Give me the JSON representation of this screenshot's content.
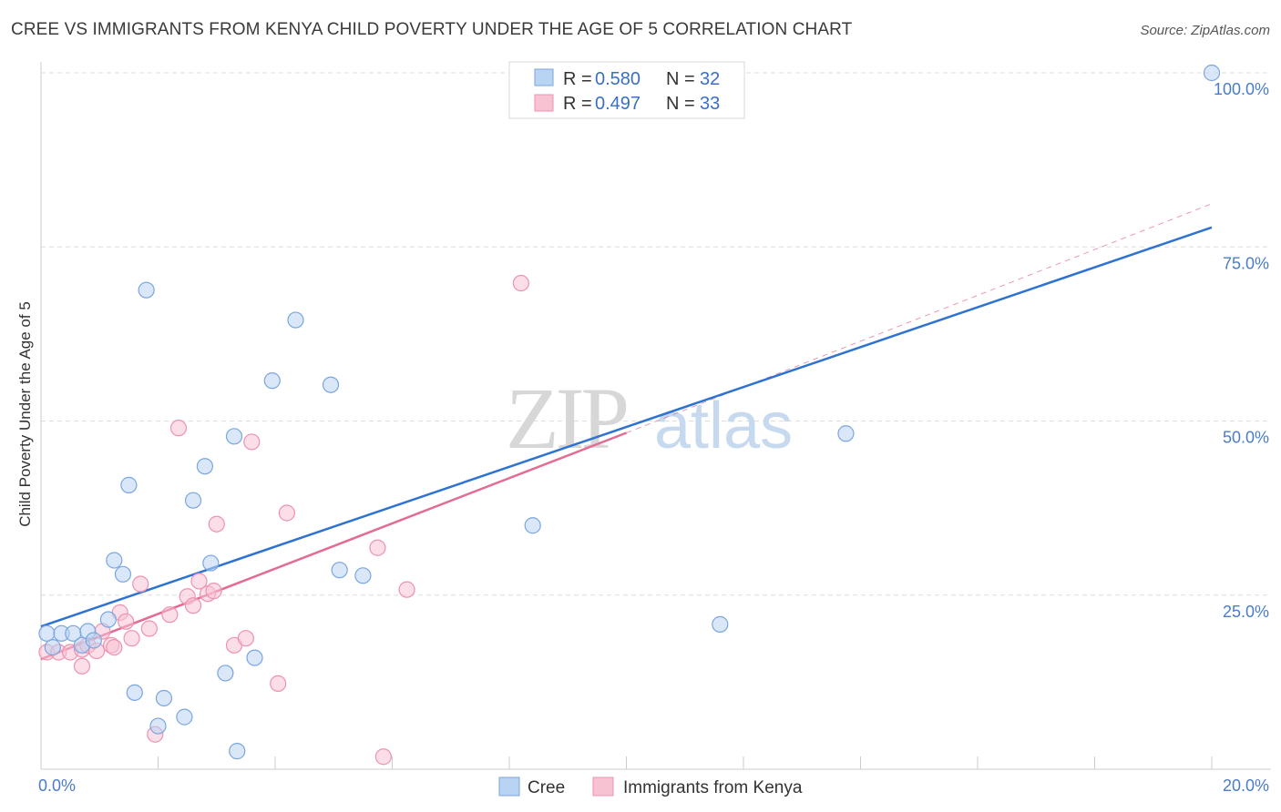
{
  "title": "CREE VS IMMIGRANTS FROM KENYA CHILD POVERTY UNDER THE AGE OF 5 CORRELATION CHART",
  "source": "Source: ZipAtlas.com",
  "watermark": {
    "zip": "ZIP",
    "atlas": "atlas"
  },
  "colors": {
    "blue_fill": "#b9d4f3",
    "blue_stroke": "#7aa6de",
    "blue_line": "#2f73d1",
    "pink_fill": "#f7c3d3",
    "pink_stroke": "#ee92b0",
    "pink_line": "#e26c95",
    "grid": "#dddddd",
    "tick": "#4a7cc9"
  },
  "legend": {
    "rows": [
      {
        "r_label": "R =",
        "r_value": "0.580",
        "n_label": "N =",
        "n_value": "32"
      },
      {
        "r_label": "R =",
        "r_value": "0.497",
        "n_label": "N =",
        "n_value": "33"
      }
    ]
  },
  "bottom_legend": [
    "Cree",
    "Immigrants from Kenya"
  ],
  "chart_data": {
    "type": "scatter",
    "title": "CREE VS IMMIGRANTS FROM KENYA CHILD POVERTY UNDER THE AGE OF 5 CORRELATION CHART",
    "xlabel": "",
    "ylabel": "Child Poverty Under the Age of 5",
    "xlim": [
      0,
      20
    ],
    "ylim": [
      0,
      100
    ],
    "x_tick_labels": [
      "0.0%",
      "20.0%"
    ],
    "y_ticks": [
      25,
      50,
      75,
      100
    ],
    "y_tick_labels": [
      "25.0%",
      "50.0%",
      "75.0%",
      "100.0%"
    ],
    "grid": true,
    "series": [
      {
        "name": "Cree",
        "color": "#7aa6de",
        "points": [
          [
            0.1,
            19.5
          ],
          [
            0.2,
            17.5
          ],
          [
            0.35,
            19.5
          ],
          [
            0.55,
            19.5
          ],
          [
            0.7,
            17.8
          ],
          [
            0.8,
            19.8
          ],
          [
            0.9,
            18.5
          ],
          [
            1.15,
            21.5
          ],
          [
            1.25,
            30
          ],
          [
            1.4,
            28
          ],
          [
            1.5,
            40.8
          ],
          [
            1.6,
            11
          ],
          [
            1.8,
            68.8
          ],
          [
            2.0,
            6.2
          ],
          [
            2.1,
            10.2
          ],
          [
            2.45,
            7.5
          ],
          [
            2.6,
            38.6
          ],
          [
            2.8,
            43.5
          ],
          [
            2.9,
            29.6
          ],
          [
            3.15,
            13.8
          ],
          [
            3.3,
            47.8
          ],
          [
            3.35,
            2.6
          ],
          [
            3.65,
            16
          ],
          [
            3.95,
            55.8
          ],
          [
            4.35,
            64.5
          ],
          [
            4.95,
            55.2
          ],
          [
            5.1,
            28.6
          ],
          [
            5.5,
            27.8
          ],
          [
            8.4,
            35
          ],
          [
            11.6,
            20.8
          ],
          [
            13.75,
            48.2
          ],
          [
            20.0,
            100
          ]
        ],
        "trend": {
          "x0": 0,
          "y0": 20.5,
          "x1": 20,
          "y1": 77.8
        }
      },
      {
        "name": "Immigrants from Kenya",
        "color": "#ee92b0",
        "points": [
          [
            0.1,
            16.8
          ],
          [
            0.3,
            16.8
          ],
          [
            0.5,
            16.8
          ],
          [
            0.7,
            17.2
          ],
          [
            0.7,
            14.8
          ],
          [
            0.8,
            17.8
          ],
          [
            0.95,
            17
          ],
          [
            1.05,
            19.8
          ],
          [
            1.2,
            17.8
          ],
          [
            1.25,
            17.5
          ],
          [
            1.35,
            22.5
          ],
          [
            1.45,
            21.2
          ],
          [
            1.55,
            18.8
          ],
          [
            1.7,
            26.6
          ],
          [
            1.85,
            20.2
          ],
          [
            1.95,
            5
          ],
          [
            2.2,
            22.2
          ],
          [
            2.35,
            49
          ],
          [
            2.5,
            24.8
          ],
          [
            2.6,
            23.5
          ],
          [
            2.7,
            27
          ],
          [
            2.85,
            25.2
          ],
          [
            2.95,
            25.6
          ],
          [
            3.0,
            35.2
          ],
          [
            3.3,
            17.8
          ],
          [
            3.5,
            18.8
          ],
          [
            3.6,
            47
          ],
          [
            4.05,
            12.3
          ],
          [
            4.2,
            36.8
          ],
          [
            5.75,
            31.8
          ],
          [
            5.85,
            1.8
          ],
          [
            6.25,
            25.8
          ],
          [
            8.2,
            69.8
          ]
        ],
        "trend": {
          "x0": 0,
          "y0": 15.8,
          "x1": 10,
          "y1": 48.3
        },
        "trend_extension": {
          "x0": 10,
          "y0": 48.3,
          "x1": 20,
          "y1": 81.2
        }
      }
    ]
  }
}
